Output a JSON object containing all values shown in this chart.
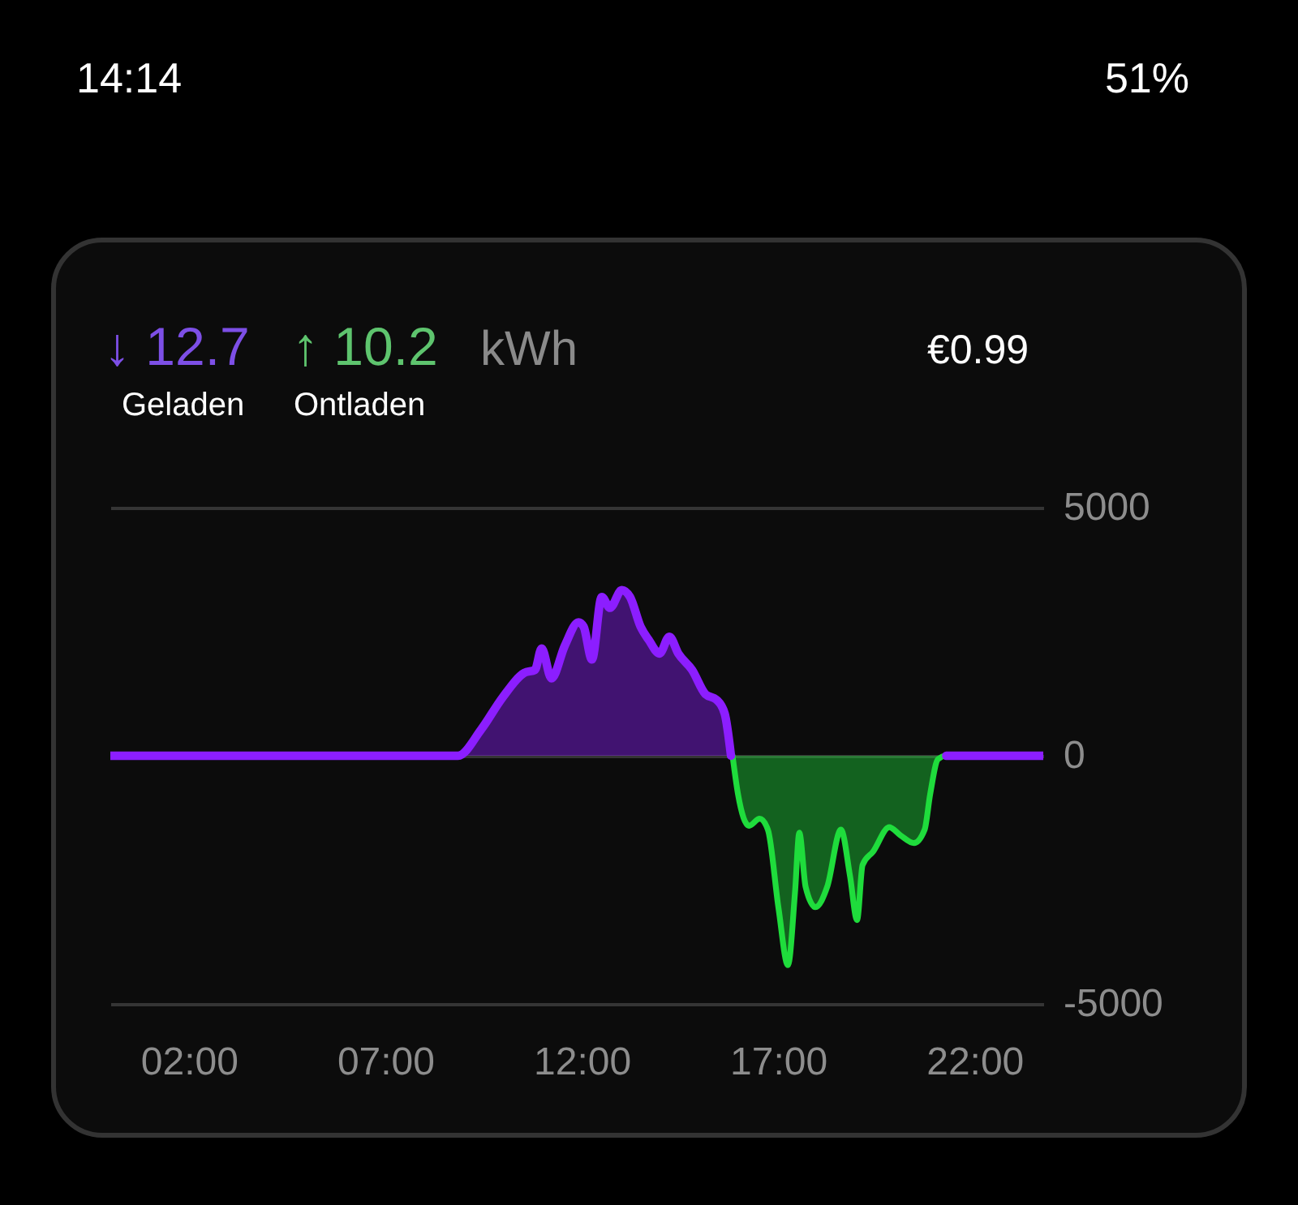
{
  "chart_data": {
    "type": "area",
    "annotations": [
      "14:14",
      "51%",
      "↓ 12.7",
      "↑ 10.2",
      "kWh",
      "Geladen",
      "Ontladen",
      "€0.99"
    ],
    "xlim": [
      0,
      23.75
    ],
    "xticks": [
      {
        "value": 2,
        "label": "02:00"
      },
      {
        "value": 7,
        "label": "07:00"
      },
      {
        "value": 12,
        "label": "12:00"
      },
      {
        "value": 17,
        "label": "17:00"
      },
      {
        "value": 22,
        "label": "22:00"
      }
    ],
    "ylim": [
      -5000,
      5000
    ],
    "yticks": [
      -5000,
      0,
      5000
    ],
    "grid": "y",
    "series": [
      {
        "color": "#8c1eff",
        "x": [
          0,
          8.85,
          9.44,
          9.99,
          10.54,
          10.81,
          10.98,
          11.23,
          11.57,
          11.92,
          12.05,
          12.26,
          12.51,
          12.72,
          13.02,
          13.23,
          13.5,
          13.71,
          13.98,
          14.23,
          14.46,
          14.81,
          15.15,
          15.43,
          15.64,
          15.8,
          15.84,
          21.28,
          23.75
        ],
        "values": [
          0,
          0,
          530,
          1180,
          1670,
          1730,
          2160,
          1560,
          2220,
          2690,
          2600,
          1940,
          3200,
          2980,
          3340,
          3200,
          2600,
          2330,
          2060,
          2400,
          2060,
          1730,
          1240,
          1130,
          850,
          0,
          null,
          0,
          0
        ]
      },
      {
        "color": "#1fdc3c",
        "x": [
          0,
          8.85,
          8.9,
          15.84,
          15.98,
          16.26,
          16.53,
          16.74,
          17.01,
          17.25,
          17.43,
          17.54,
          17.7,
          17.95,
          18.25,
          18.6,
          18.83,
          19.01,
          19.15,
          19.42,
          19.83,
          20.11,
          20.46,
          20.73,
          20.87,
          21.07,
          21.28,
          23.75
        ],
        "values": [
          0,
          0,
          null,
          0,
          -780,
          -1410,
          -1270,
          -1490,
          -3070,
          -4220,
          -2750,
          -1550,
          -2640,
          -3050,
          -2640,
          -1490,
          -2420,
          -3310,
          -2200,
          -1930,
          -1440,
          -1600,
          -1760,
          -1490,
          -780,
          -70,
          0,
          0
        ]
      }
    ]
  }
}
